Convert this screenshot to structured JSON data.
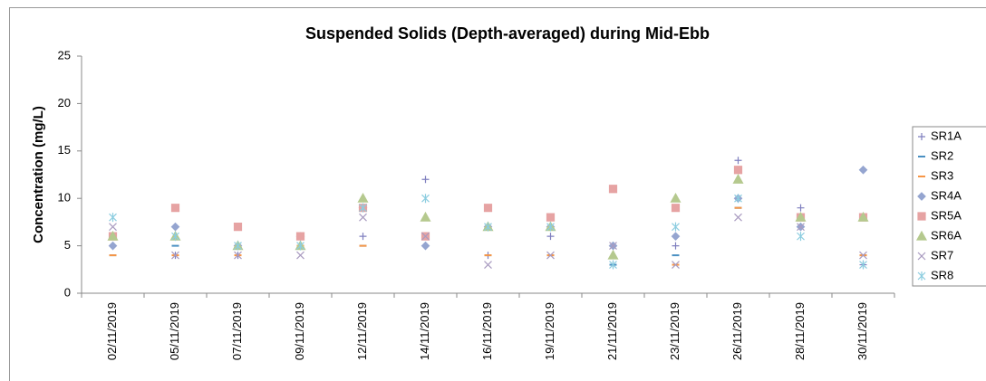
{
  "chart_data": {
    "type": "scatter",
    "title": "Suspended Solids (Depth-averaged) during Mid-Ebb",
    "y_label": "Concentration (mg/L)",
    "categories": [
      "02/11/2019",
      "05/11/2019",
      "07/11/2019",
      "09/11/2019",
      "12/11/2019",
      "14/11/2019",
      "16/11/2019",
      "19/11/2019",
      "21/11/2019",
      "23/11/2019",
      "26/11/2019",
      "28/11/2019",
      "30/11/2019"
    ],
    "ylim": [
      0,
      25
    ],
    "yticks": [
      0,
      5,
      10,
      15,
      20,
      25
    ],
    "grid": false,
    "legend": "right",
    "series": [
      {
        "name": "SR1A",
        "color": "#7f7fbf",
        "marker": "plus",
        "values": [
          6,
          4,
          4,
          5,
          6,
          12,
          4,
          6,
          3,
          5,
          14,
          9,
          3
        ]
      },
      {
        "name": "SR2",
        "color": "#4a90c2",
        "marker": "dash",
        "values": [
          4,
          5,
          5,
          5,
          5,
          6,
          4,
          4,
          3,
          4,
          9,
          8,
          4
        ]
      },
      {
        "name": "SR3",
        "color": "#f79646",
        "marker": "dash",
        "values": [
          4,
          4,
          4,
          5,
          5,
          6,
          4,
          4,
          5,
          3,
          9,
          8,
          4
        ]
      },
      {
        "name": "SR4A",
        "color": "#95a5d0",
        "marker": "diamond",
        "values": [
          5,
          7,
          5,
          6,
          9,
          5,
          7,
          7,
          5,
          6,
          10,
          7,
          13
        ]
      },
      {
        "name": "SR5A",
        "color": "#e6a3a3",
        "marker": "square",
        "values": [
          6,
          9,
          7,
          6,
          9,
          6,
          9,
          8,
          11,
          9,
          13,
          8,
          8
        ]
      },
      {
        "name": "SR6A",
        "color": "#b5c98e",
        "marker": "triangle",
        "values": [
          6,
          6,
          5,
          5,
          10,
          8,
          7,
          7,
          4,
          10,
          12,
          8,
          8
        ]
      },
      {
        "name": "SR7",
        "color": "#a99bc0",
        "marker": "x",
        "values": [
          7,
          4,
          4,
          4,
          8,
          6,
          3,
          4,
          5,
          3,
          8,
          7,
          4
        ]
      },
      {
        "name": "SR8",
        "color": "#8ccde0",
        "marker": "asterisk",
        "values": [
          8,
          6,
          5,
          5,
          9,
          10,
          7,
          7,
          3,
          7,
          10,
          6,
          3
        ]
      }
    ]
  }
}
